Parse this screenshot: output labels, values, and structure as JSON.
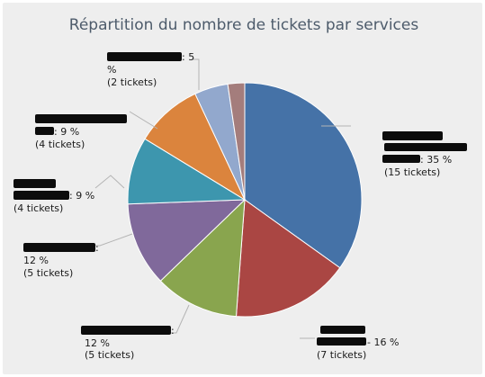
{
  "chart_data": {
    "type": "pie",
    "title": "Répartition du nombre de tickets par services",
    "slices": [
      {
        "name": "",
        "percent_label": "35 %",
        "count_label": "(15 tickets)",
        "percent": 35,
        "tickets": 15,
        "color": "#4572a7"
      },
      {
        "name": "",
        "percent_label": "16 %",
        "count_label": "(7 tickets)",
        "percent": 16,
        "tickets": 7,
        "color": "#aa4643"
      },
      {
        "name": "",
        "percent_label": "12 %",
        "count_label": "(5 tickets)",
        "percent": 12,
        "tickets": 5,
        "color": "#89a54e"
      },
      {
        "name": "",
        "percent_label": "12 %",
        "count_label": "(5 tickets)",
        "percent": 12,
        "tickets": 5,
        "color": "#80699b"
      },
      {
        "name": "",
        "percent_label": "9 %",
        "count_label": "(4 tickets)",
        "percent": 9,
        "tickets": 4,
        "color": "#3d96ae"
      },
      {
        "name": "",
        "percent_label": "9 %",
        "count_label": "(4 tickets)",
        "percent": 9,
        "tickets": 4,
        "color": "#db843d"
      },
      {
        "name": "",
        "percent_label": "5",
        "percent_label_cont": "%",
        "count_label": "(2 tickets)",
        "percent": 5,
        "tickets": 2,
        "color": "#92a8cd"
      },
      {
        "name": "",
        "percent": 2,
        "tickets": 1,
        "color": "#a47d7c"
      }
    ]
  }
}
